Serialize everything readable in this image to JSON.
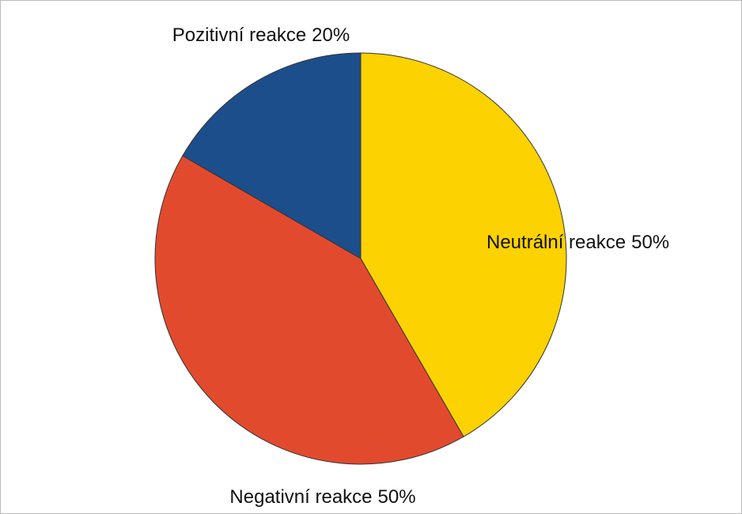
{
  "chart_data": {
    "type": "pie",
    "categories": [
      "Neutrální reakce",
      "Negativní reakce",
      "Pozitivní reakce"
    ],
    "values": [
      50,
      50,
      20
    ],
    "value_labels": [
      "50%",
      "50%",
      "20%"
    ],
    "colors": [
      "#fcd200",
      "#e24a2e",
      "#1c4e8c"
    ]
  }
}
